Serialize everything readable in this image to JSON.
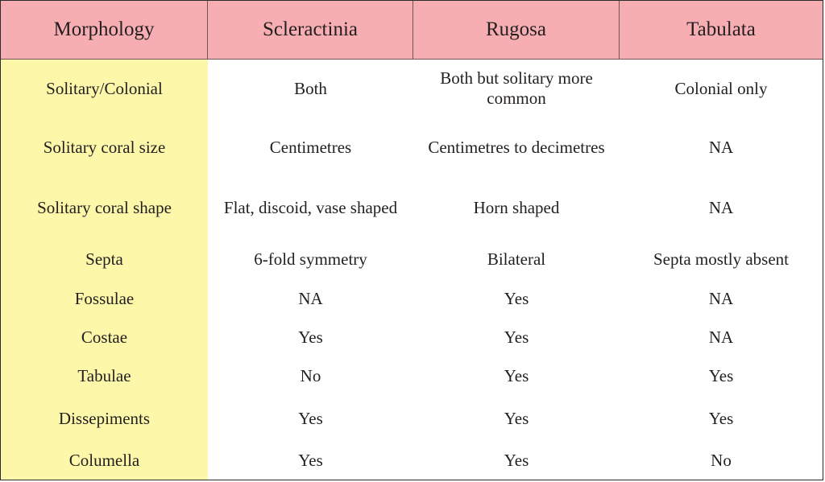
{
  "header": {
    "morphology": "Morphology",
    "scleractinia": "Scleractinia",
    "rugosa": "Rugosa",
    "tabulata": "Tabulata"
  },
  "rows": [
    {
      "feature": "Solitary/Colonial",
      "scleractinia": "Both",
      "rugosa": "Both but solitary more common",
      "tabulata": "Colonial only"
    },
    {
      "feature": "Solitary coral size",
      "scleractinia": "Centimetres",
      "rugosa": "Centimetres to decimetres",
      "tabulata": "NA"
    },
    {
      "feature": "Solitary coral shape",
      "scleractinia": "Flat, discoid, vase shaped",
      "rugosa": "Horn shaped",
      "tabulata": "NA"
    },
    {
      "feature": "Septa",
      "scleractinia": "6-fold symmetry",
      "rugosa": "Bilateral",
      "tabulata": "Septa mostly absent"
    },
    {
      "feature": "Fossulae",
      "scleractinia": "NA",
      "rugosa": "Yes",
      "tabulata": "NA"
    },
    {
      "feature": "Costae",
      "scleractinia": "Yes",
      "rugosa": "Yes",
      "tabulata": "NA"
    },
    {
      "feature": "Tabulae",
      "scleractinia": "No",
      "rugosa": "Yes",
      "tabulata": "Yes"
    },
    {
      "feature": "Dissepiments",
      "scleractinia": "Yes",
      "rugosa": "Yes",
      "tabulata": "Yes"
    },
    {
      "feature": "Columella",
      "scleractinia": "Yes",
      "rugosa": "Yes",
      "tabulata": "No"
    }
  ],
  "colors": {
    "header_bg": "#f7aeb2",
    "first_column_bg": "#fdf8a9",
    "body_bg": "#ffffff",
    "text": "#231f20"
  }
}
